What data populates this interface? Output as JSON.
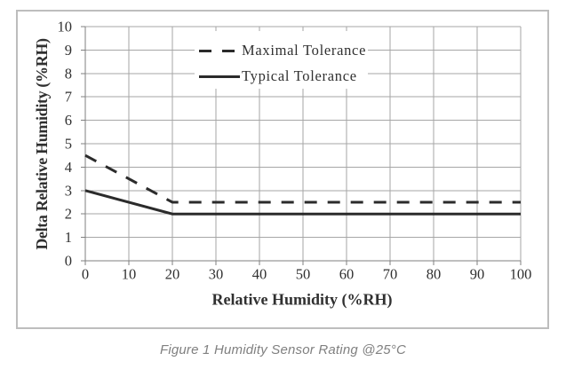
{
  "figure": {
    "caption": "Figure 1 Humidity Sensor Rating @25°C"
  },
  "chart_data": {
    "type": "line",
    "title": "",
    "xlabel": "Relative Humidity (%RH)",
    "ylabel": "Delta Relative Humidity (%RH)",
    "xlim": [
      0,
      100
    ],
    "ylim": [
      0,
      10
    ],
    "x_ticks": [
      0,
      10,
      20,
      30,
      40,
      50,
      60,
      70,
      80,
      90,
      100
    ],
    "y_ticks": [
      0,
      1,
      2,
      3,
      4,
      5,
      6,
      7,
      8,
      9,
      10
    ],
    "grid": true,
    "legend_position": "inside-upper-left",
    "series": [
      {
        "name": "Maximal Tolerance",
        "style": "dashed",
        "x": [
          0,
          20,
          100
        ],
        "y": [
          4.5,
          2.5,
          2.5
        ]
      },
      {
        "name": "Typical Tolerance",
        "style": "solid",
        "x": [
          0,
          20,
          100
        ],
        "y": [
          3,
          2,
          2
        ]
      }
    ],
    "colors": {
      "series": "#2b2b2b",
      "grid": "#a6a6a6",
      "axis": "#7f7f7f",
      "text": "#303030",
      "frame_border": "#bdbdbd",
      "caption": "#808080",
      "plot_background": "#ffffff"
    }
  }
}
